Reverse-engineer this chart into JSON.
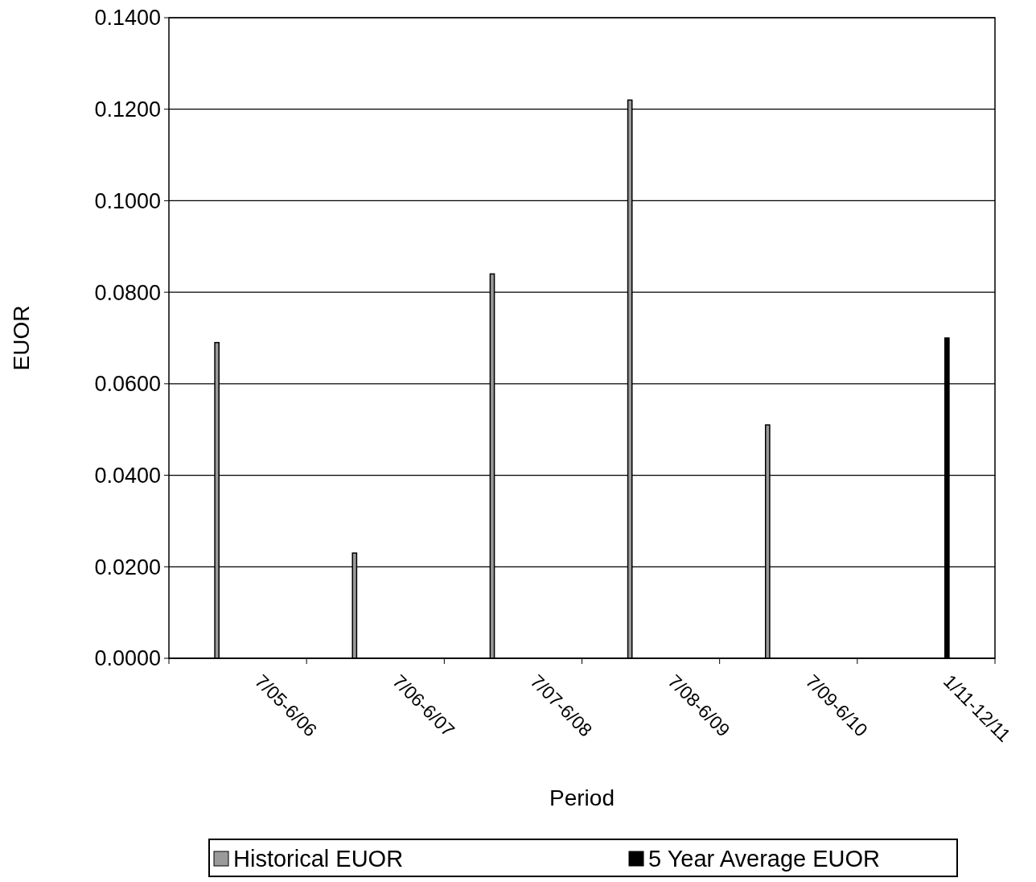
{
  "chart_data": {
    "type": "bar",
    "xlabel": "Period",
    "ylabel": "EUOR",
    "categories": [
      "7/05-6/06",
      "7/06-6/07",
      "7/07-6/08",
      "7/08-6/09",
      "7/09-6/10",
      "1/11-12/11"
    ],
    "series": [
      {
        "name": "Historical EUOR",
        "color": "#9a9a9a",
        "values": [
          0.069,
          0.023,
          0.084,
          0.122,
          0.051,
          null
        ]
      },
      {
        "name": "5 Year Average EUOR",
        "color": "#000000",
        "values": [
          null,
          null,
          null,
          null,
          null,
          0.07
        ]
      }
    ],
    "ylim": [
      0,
      0.14
    ],
    "yticks": [
      {
        "value": 0,
        "label": "0.0000"
      },
      {
        "value": 0.02,
        "label": "0.0200"
      },
      {
        "value": 0.04,
        "label": "0.0400"
      },
      {
        "value": 0.06,
        "label": "0.0600"
      },
      {
        "value": 0.08,
        "label": "0.0800"
      },
      {
        "value": 0.1,
        "label": "0.1000"
      },
      {
        "value": 0.12,
        "label": "0.1200"
      },
      {
        "value": 0.14,
        "label": "0.1400"
      }
    ],
    "grid": "y",
    "legend": "bottom"
  }
}
